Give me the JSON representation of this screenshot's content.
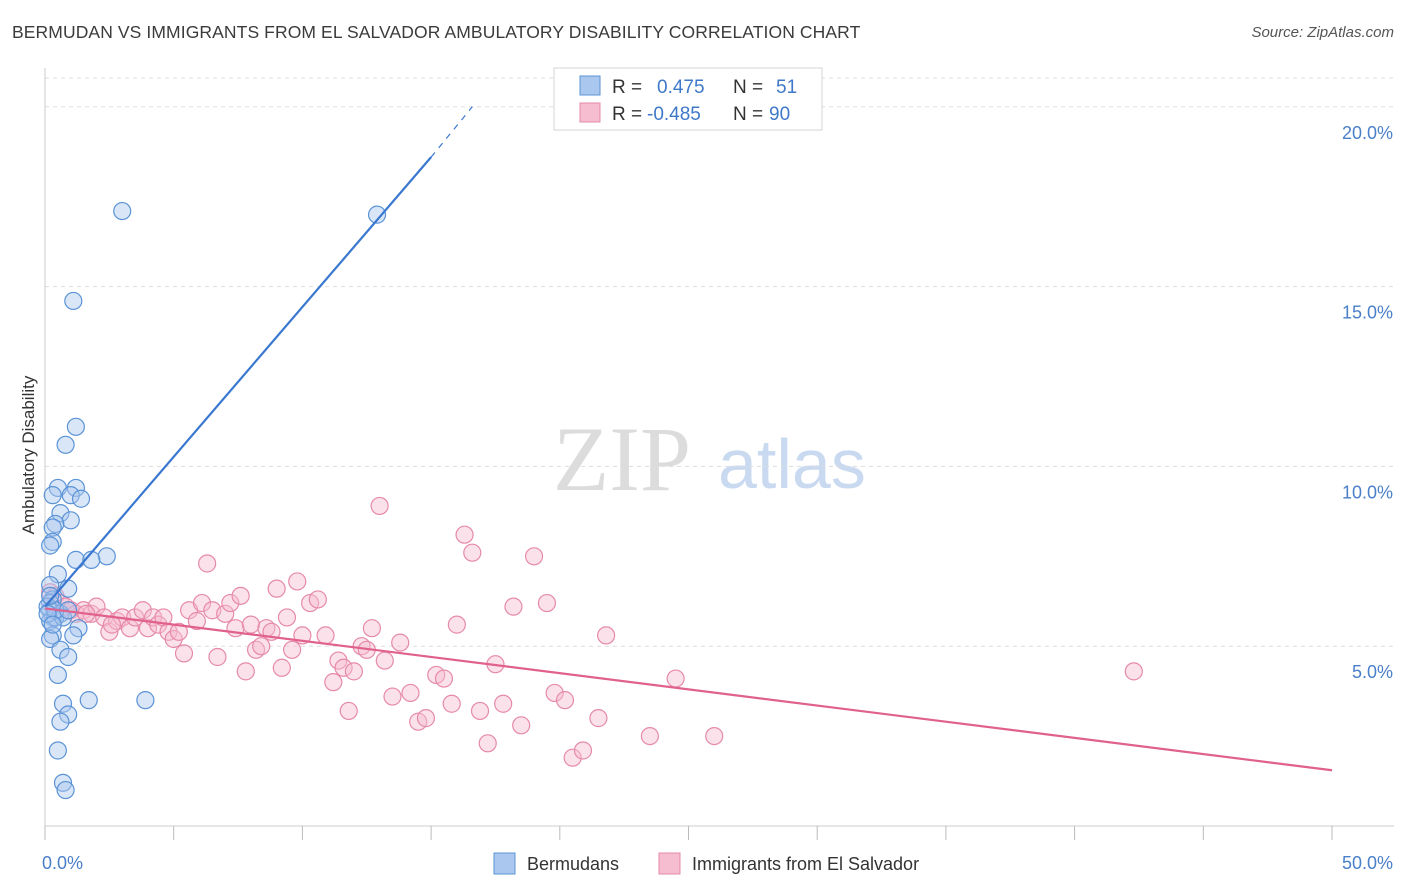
{
  "title": "BERMUDAN VS IMMIGRANTS FROM EL SALVADOR AMBULATORY DISABILITY CORRELATION CHART",
  "source": "Source: ZipAtlas.com",
  "watermark": {
    "zip": "ZIP",
    "atlas": "atlas"
  },
  "colors": {
    "blue_fill": "#aac8ef",
    "blue_stroke": "#5b93d6",
    "blue_line": "#3a78d0",
    "pink_fill": "#f6bcd0",
    "pink_stroke": "#e68aa9",
    "pink_line": "#e0608e",
    "grid": "#dddddd",
    "tick_label": "#4a7fc9"
  },
  "legend_box": {
    "rows": [
      {
        "r_label": "R =",
        "r_value": "0.475",
        "n_label": "N =",
        "n_value": "51",
        "series": "blue"
      },
      {
        "r_label": "R =",
        "r_value": "-0.485",
        "n_label": "N =",
        "n_value": "90",
        "series": "pink"
      }
    ]
  },
  "bottom_legend": [
    {
      "label": "Bermudans",
      "series": "blue"
    },
    {
      "label": "Immigrants from El Salvador",
      "series": "pink"
    }
  ],
  "chart_data": {
    "type": "scatter",
    "title": "BERMUDAN VS IMMIGRANTS FROM EL SALVADOR AMBULATORY DISABILITY CORRELATION CHART",
    "xlabel": "",
    "ylabel": "Ambulatory Disability",
    "xlim": [
      0,
      50
    ],
    "ylim": [
      0,
      20.8
    ],
    "x_tick_labels": [
      {
        "value": 0,
        "label": "0.0%"
      },
      {
        "value": 50,
        "label": "50.0%"
      }
    ],
    "y_tick_labels": [
      {
        "value": 5,
        "label": "5.0%"
      },
      {
        "value": 10,
        "label": "10.0%"
      },
      {
        "value": 15,
        "label": "15.0%"
      },
      {
        "value": 20,
        "label": "20.0%"
      }
    ],
    "grid": "horizontal dashed",
    "series": [
      {
        "name": "Bermudans",
        "color": "blue",
        "r": 0.475,
        "n": 51,
        "trend": {
          "x0": 0.0,
          "y0": 6.1,
          "x1": 15.0,
          "y1": 18.6,
          "dashed_to_x": 16.6,
          "dashed_to_y": 20.0
        },
        "points": [
          [
            3.0,
            17.1
          ],
          [
            12.9,
            17.0
          ],
          [
            1.1,
            14.6
          ],
          [
            1.2,
            11.1
          ],
          [
            0.8,
            10.6
          ],
          [
            0.5,
            9.4
          ],
          [
            1.2,
            9.4
          ],
          [
            1.0,
            9.2
          ],
          [
            0.3,
            9.2
          ],
          [
            1.4,
            9.1
          ],
          [
            0.6,
            8.7
          ],
          [
            1.0,
            8.5
          ],
          [
            0.4,
            8.4
          ],
          [
            0.3,
            8.3
          ],
          [
            0.3,
            7.9
          ],
          [
            0.2,
            7.8
          ],
          [
            2.4,
            7.5
          ],
          [
            1.2,
            7.4
          ],
          [
            1.8,
            7.4
          ],
          [
            0.5,
            7.0
          ],
          [
            0.2,
            6.7
          ],
          [
            0.9,
            6.6
          ],
          [
            0.3,
            6.3
          ],
          [
            0.2,
            6.2
          ],
          [
            0.2,
            6.0
          ],
          [
            0.6,
            5.9
          ],
          [
            0.3,
            5.8
          ],
          [
            0.2,
            5.7
          ],
          [
            0.4,
            5.8
          ],
          [
            0.7,
            5.8
          ],
          [
            1.3,
            5.5
          ],
          [
            0.3,
            5.3
          ],
          [
            0.2,
            5.2
          ],
          [
            1.1,
            5.3
          ],
          [
            0.6,
            4.9
          ],
          [
            0.9,
            4.7
          ],
          [
            0.5,
            4.2
          ],
          [
            1.7,
            3.5
          ],
          [
            3.9,
            3.5
          ],
          [
            0.7,
            3.4
          ],
          [
            0.9,
            3.1
          ],
          [
            0.6,
            2.9
          ],
          [
            0.5,
            2.1
          ],
          [
            0.7,
            1.2
          ],
          [
            0.8,
            1.0
          ],
          [
            0.1,
            6.1
          ],
          [
            0.4,
            6.0
          ],
          [
            0.1,
            5.9
          ],
          [
            0.2,
            6.4
          ],
          [
            0.3,
            5.6
          ],
          [
            0.9,
            6.0
          ]
        ]
      },
      {
        "name": "Immigrants from El Salvador",
        "color": "pink",
        "r": -0.485,
        "n": 90,
        "trend": {
          "x0": 0.0,
          "y0": 6.05,
          "x1": 50.0,
          "y1": 1.55
        },
        "points": [
          [
            0.2,
            6.5
          ],
          [
            0.4,
            6.4
          ],
          [
            0.6,
            6.2
          ],
          [
            0.8,
            6.1
          ],
          [
            1.0,
            6.0
          ],
          [
            1.2,
            5.9
          ],
          [
            1.5,
            6.0
          ],
          [
            1.8,
            5.9
          ],
          [
            2.0,
            6.1
          ],
          [
            2.3,
            5.8
          ],
          [
            2.5,
            5.4
          ],
          [
            2.8,
            5.7
          ],
          [
            3.0,
            5.8
          ],
          [
            3.3,
            5.5
          ],
          [
            3.5,
            5.8
          ],
          [
            3.8,
            6.0
          ],
          [
            4.0,
            5.5
          ],
          [
            4.2,
            5.8
          ],
          [
            4.4,
            5.6
          ],
          [
            4.6,
            5.8
          ],
          [
            4.8,
            5.4
          ],
          [
            5.0,
            5.2
          ],
          [
            5.2,
            5.4
          ],
          [
            5.4,
            4.8
          ],
          [
            5.6,
            6.0
          ],
          [
            5.9,
            5.7
          ],
          [
            6.1,
            6.2
          ],
          [
            6.3,
            7.3
          ],
          [
            6.5,
            6.0
          ],
          [
            6.7,
            4.7
          ],
          [
            7.0,
            5.9
          ],
          [
            7.2,
            6.2
          ],
          [
            7.4,
            5.5
          ],
          [
            7.6,
            6.4
          ],
          [
            7.8,
            4.3
          ],
          [
            8.0,
            5.6
          ],
          [
            8.2,
            4.9
          ],
          [
            8.4,
            5.0
          ],
          [
            8.6,
            5.5
          ],
          [
            8.8,
            5.4
          ],
          [
            9.0,
            6.6
          ],
          [
            9.2,
            4.4
          ],
          [
            9.4,
            5.8
          ],
          [
            9.6,
            4.9
          ],
          [
            9.8,
            6.8
          ],
          [
            10.0,
            5.3
          ],
          [
            10.3,
            6.2
          ],
          [
            10.6,
            6.3
          ],
          [
            10.9,
            5.3
          ],
          [
            11.2,
            4.0
          ],
          [
            11.4,
            4.6
          ],
          [
            11.6,
            4.4
          ],
          [
            11.8,
            3.2
          ],
          [
            12.0,
            4.3
          ],
          [
            12.3,
            5.0
          ],
          [
            12.5,
            4.9
          ],
          [
            12.7,
            5.5
          ],
          [
            13.0,
            8.9
          ],
          [
            13.2,
            4.6
          ],
          [
            13.5,
            3.6
          ],
          [
            13.8,
            5.1
          ],
          [
            14.2,
            3.7
          ],
          [
            14.5,
            2.9
          ],
          [
            14.8,
            3.0
          ],
          [
            15.2,
            4.2
          ],
          [
            15.5,
            4.1
          ],
          [
            15.8,
            3.4
          ],
          [
            16.0,
            5.6
          ],
          [
            16.3,
            8.1
          ],
          [
            16.6,
            7.6
          ],
          [
            16.9,
            3.2
          ],
          [
            17.2,
            2.3
          ],
          [
            17.5,
            4.5
          ],
          [
            17.8,
            3.4
          ],
          [
            18.2,
            6.1
          ],
          [
            18.5,
            2.8
          ],
          [
            19.0,
            7.5
          ],
          [
            19.5,
            6.2
          ],
          [
            19.8,
            3.7
          ],
          [
            20.2,
            3.5
          ],
          [
            20.5,
            1.9
          ],
          [
            20.9,
            2.1
          ],
          [
            21.5,
            3.0
          ],
          [
            21.8,
            5.3
          ],
          [
            23.5,
            2.5
          ],
          [
            24.5,
            4.1
          ],
          [
            26.0,
            2.5
          ],
          [
            42.3,
            4.3
          ],
          [
            1.6,
            5.9
          ],
          [
            2.6,
            5.6
          ]
        ]
      }
    ]
  }
}
